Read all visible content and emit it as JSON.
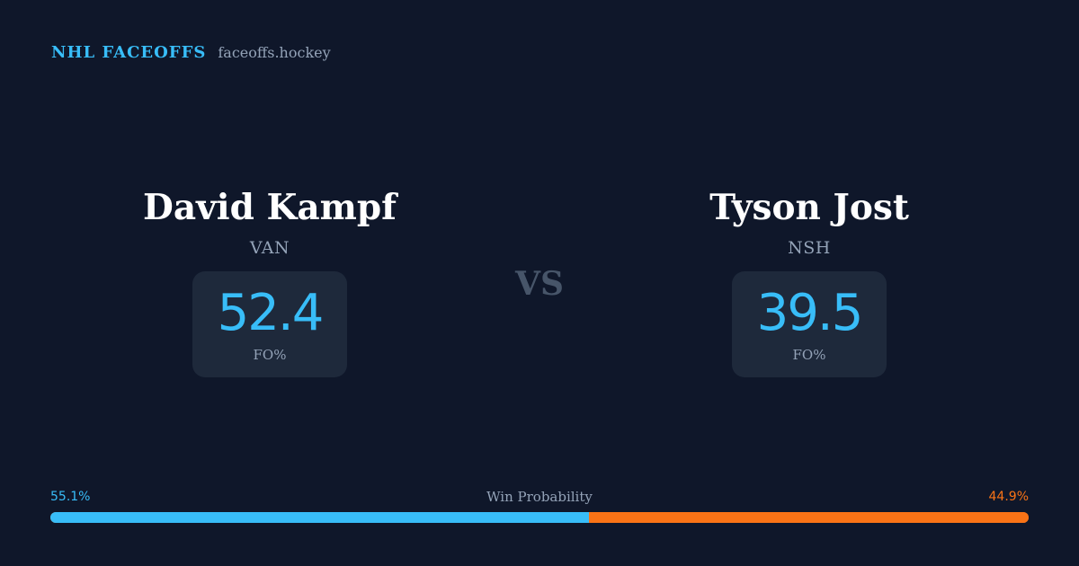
{
  "header": {
    "brand": "NHL FACEOFFS",
    "site": "faceoffs.hockey"
  },
  "players": [
    {
      "name": "David Kampf",
      "team": "VAN",
      "stat_value": "52.4",
      "stat_label": "FO%"
    },
    {
      "name": "Tyson Jost",
      "team": "NSH",
      "stat_value": "39.5",
      "stat_label": "FO%"
    }
  ],
  "vs_label": "VS",
  "win_probability": {
    "title": "Win Probability",
    "left_label": "55.1%",
    "right_label": "44.9%",
    "left_fraction": 0.551,
    "right_fraction": 0.449
  },
  "colors": {
    "background": "#0f172a",
    "accent": "#38bdf8",
    "opponent": "#f97316",
    "card": "#1e293b",
    "muted": "#94a3b8"
  }
}
